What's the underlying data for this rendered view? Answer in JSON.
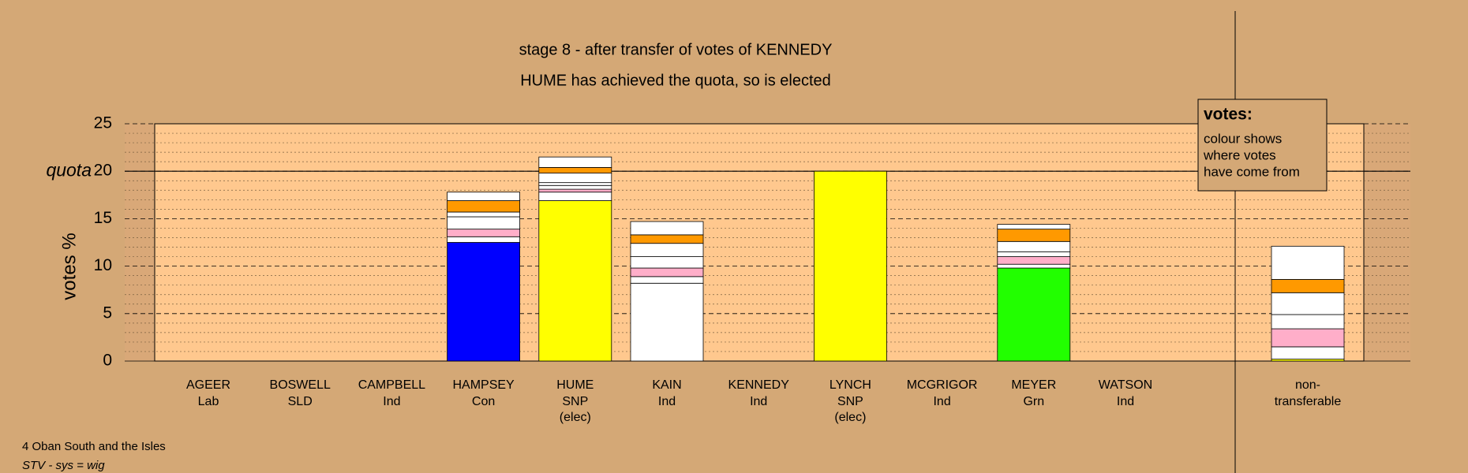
{
  "chart_data": {
    "type": "stacked_bar",
    "title": "stage 8 - after transfer of votes of KENNEDY",
    "subtitle": "HUME has achieved the quota, so is elected",
    "y_label": "votes %",
    "ylim": [
      0,
      25
    ],
    "yticks": [
      0,
      5,
      10,
      15,
      20,
      25
    ],
    "minor_yticks": [
      1,
      2,
      3,
      4,
      6,
      7,
      8,
      9,
      11,
      12,
      13,
      14,
      16,
      17,
      18,
      19,
      21,
      22,
      23,
      24
    ],
    "quota": {
      "value": 20,
      "label": "quota"
    },
    "categories": [
      "AGEER",
      "BOSWELL",
      "CAMPBELL",
      "HAMPSEY",
      "HUME",
      "KAIN",
      "KENNEDY",
      "LYNCH",
      "MCGRIGOR",
      "MEYER",
      "WATSON",
      "non-"
    ],
    "parties": [
      "Lab",
      "SLD",
      "Ind",
      "Con",
      "SNP",
      "Ind",
      "Ind",
      "SNP",
      "Ind",
      "Grn",
      "Ind",
      "transferable"
    ],
    "notes": [
      null,
      null,
      null,
      null,
      "(elec)",
      null,
      null,
      "(elec)",
      null,
      null,
      null,
      null
    ],
    "stacks": [
      [],
      [],
      [],
      [
        {
          "value": 12.5,
          "color": "#0000ff"
        },
        {
          "value": 0.6,
          "color": "#ffffff"
        },
        {
          "value": 0.8,
          "color": "#ffaec9"
        },
        {
          "value": 1.3,
          "color": "#ffffff"
        },
        {
          "value": 0.5,
          "color": "#ffffff"
        },
        {
          "value": 1.2,
          "color": "#ff9900"
        },
        {
          "value": 0.9,
          "color": "#ffffff"
        }
      ],
      [
        {
          "value": 16.9,
          "color": "#ffff00"
        },
        {
          "value": 0.9,
          "color": "#ffffff"
        },
        {
          "value": 0.3,
          "color": "#ffaec9"
        },
        {
          "value": 0.4,
          "color": "#ffffff"
        },
        {
          "value": 0.3,
          "color": "#ffffff"
        },
        {
          "value": 1.0,
          "color": "#ffffff"
        },
        {
          "value": 0.6,
          "color": "#ff9900"
        },
        {
          "value": 1.1,
          "color": "#ffffff"
        }
      ],
      [
        {
          "value": 8.2,
          "color": "#ffffff"
        },
        {
          "value": 0.7,
          "color": "#ffffff"
        },
        {
          "value": 0.9,
          "color": "#ffaec9"
        },
        {
          "value": 1.2,
          "color": "#ffffff"
        },
        {
          "value": 1.4,
          "color": "#ffffff"
        },
        {
          "value": 0.9,
          "color": "#ff9900"
        },
        {
          "value": 1.4,
          "color": "#ffffff"
        }
      ],
      [],
      [
        {
          "value": 20.0,
          "color": "#ffff00"
        }
      ],
      [],
      [
        {
          "value": 9.8,
          "color": "#22ff00"
        },
        {
          "value": 0.4,
          "color": "#ffffff"
        },
        {
          "value": 0.8,
          "color": "#ffaec9"
        },
        {
          "value": 0.5,
          "color": "#ffffff"
        },
        {
          "value": 1.1,
          "color": "#ffffff"
        },
        {
          "value": 1.3,
          "color": "#ff9900"
        },
        {
          "value": 0.5,
          "color": "#ffffff"
        }
      ],
      [],
      [
        {
          "value": 0.2,
          "color": "#ffff00"
        },
        {
          "value": 1.3,
          "color": "#ffffff"
        },
        {
          "value": 1.9,
          "color": "#ffaec9"
        },
        {
          "value": 1.5,
          "color": "#ffffff"
        },
        {
          "value": 2.3,
          "color": "#ffffff"
        },
        {
          "value": 1.4,
          "color": "#ff9900"
        },
        {
          "value": 3.5,
          "color": "#ffffff"
        }
      ]
    ],
    "legend": {
      "title": "votes:",
      "lines": [
        "colour shows",
        "where votes",
        "have come from"
      ]
    },
    "footer": [
      "4 Oban South and the Isles",
      "STV - sys = wig"
    ]
  }
}
